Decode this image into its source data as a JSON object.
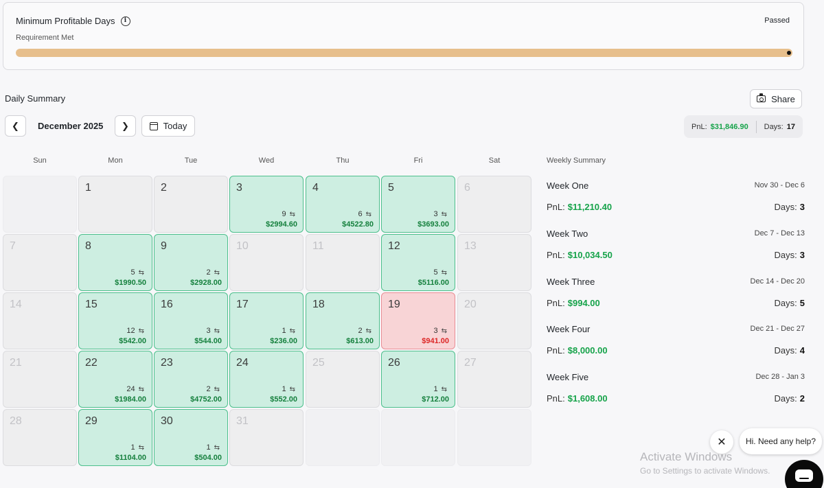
{
  "requirement": {
    "title": "Minimum Profitable Days",
    "subtitle": "Requirement Met",
    "status": "Passed",
    "progress_fraction": 1.0,
    "colors": {
      "track": "#efe9e0",
      "fill": "#e7bf8c"
    }
  },
  "summary": {
    "title": "Daily Summary",
    "share_label": "Share",
    "month_label": "December 2025",
    "today_label": "Today",
    "pnl_label": "PnL:",
    "pnl_value": "$31,846.90",
    "days_label": "Days:",
    "days_value": "17"
  },
  "calendar": {
    "weekdays": [
      "Sun",
      "Mon",
      "Tue",
      "Wed",
      "Thu",
      "Fri",
      "Sat"
    ],
    "colors": {
      "profit": "#cdeee1",
      "loss": "#f8d4d6",
      "profit_text": "#15803d",
      "loss_text": "#dc2626"
    },
    "weeks": [
      [
        {
          "type": "empty"
        },
        {
          "day": "1",
          "type": "none"
        },
        {
          "day": "2",
          "type": "none"
        },
        {
          "day": "3",
          "type": "profit",
          "trades": "9",
          "amount": "$2994.60"
        },
        {
          "day": "4",
          "type": "profit",
          "trades": "6",
          "amount": "$4522.80"
        },
        {
          "day": "5",
          "type": "profit",
          "trades": "3",
          "amount": "$3693.00"
        },
        {
          "day": "6",
          "type": "out"
        }
      ],
      [
        {
          "day": "7",
          "type": "out"
        },
        {
          "day": "8",
          "type": "profit",
          "trades": "5",
          "amount": "$1990.50"
        },
        {
          "day": "9",
          "type": "profit",
          "trades": "2",
          "amount": "$2928.00"
        },
        {
          "day": "10",
          "type": "out"
        },
        {
          "day": "11",
          "type": "out"
        },
        {
          "day": "12",
          "type": "profit",
          "trades": "5",
          "amount": "$5116.00"
        },
        {
          "day": "13",
          "type": "out"
        }
      ],
      [
        {
          "day": "14",
          "type": "out"
        },
        {
          "day": "15",
          "type": "profit",
          "trades": "12",
          "amount": "$542.00"
        },
        {
          "day": "16",
          "type": "profit",
          "trades": "3",
          "amount": "$544.00"
        },
        {
          "day": "17",
          "type": "profit",
          "trades": "1",
          "amount": "$236.00"
        },
        {
          "day": "18",
          "type": "profit",
          "trades": "2",
          "amount": "$613.00"
        },
        {
          "day": "19",
          "type": "loss",
          "trades": "3",
          "amount": "$941.00"
        },
        {
          "day": "20",
          "type": "out"
        }
      ],
      [
        {
          "day": "21",
          "type": "out"
        },
        {
          "day": "22",
          "type": "profit",
          "trades": "24",
          "amount": "$1984.00"
        },
        {
          "day": "23",
          "type": "profit",
          "trades": "2",
          "amount": "$4752.00"
        },
        {
          "day": "24",
          "type": "profit",
          "trades": "1",
          "amount": "$552.00"
        },
        {
          "day": "25",
          "type": "out"
        },
        {
          "day": "26",
          "type": "profit",
          "trades": "1",
          "amount": "$712.00"
        },
        {
          "day": "27",
          "type": "out"
        }
      ],
      [
        {
          "day": "28",
          "type": "out"
        },
        {
          "day": "29",
          "type": "profit",
          "trades": "1",
          "amount": "$1104.00"
        },
        {
          "day": "30",
          "type": "profit",
          "trades": "1",
          "amount": "$504.00"
        },
        {
          "day": "31",
          "type": "out"
        },
        {
          "type": "empty"
        },
        {
          "type": "empty"
        },
        {
          "type": "empty"
        }
      ]
    ]
  },
  "weekly": {
    "header": "Weekly Summary",
    "pnl_label": "PnL:",
    "days_label": "Days:",
    "weeks": [
      {
        "name": "Week One",
        "range": "Nov 30 - Dec 6",
        "pnl": "$11,210.40",
        "days": "3"
      },
      {
        "name": "Week Two",
        "range": "Dec 7 - Dec 13",
        "pnl": "$10,034.50",
        "days": "3"
      },
      {
        "name": "Week Three",
        "range": "Dec 14 - Dec 20",
        "pnl": "$994.00",
        "days": "5"
      },
      {
        "name": "Week Four",
        "range": "Dec 21 - Dec 27",
        "pnl": "$8,000.00",
        "days": "4"
      },
      {
        "name": "Week Five",
        "range": "Dec 28 - Jan 3",
        "pnl": "$1,608.00",
        "days": "2"
      }
    ]
  },
  "overlay": {
    "help_text": "Hi. Need any help?",
    "watermark_title": "Activate Windows",
    "watermark_sub": "Go to Settings to activate Windows."
  }
}
